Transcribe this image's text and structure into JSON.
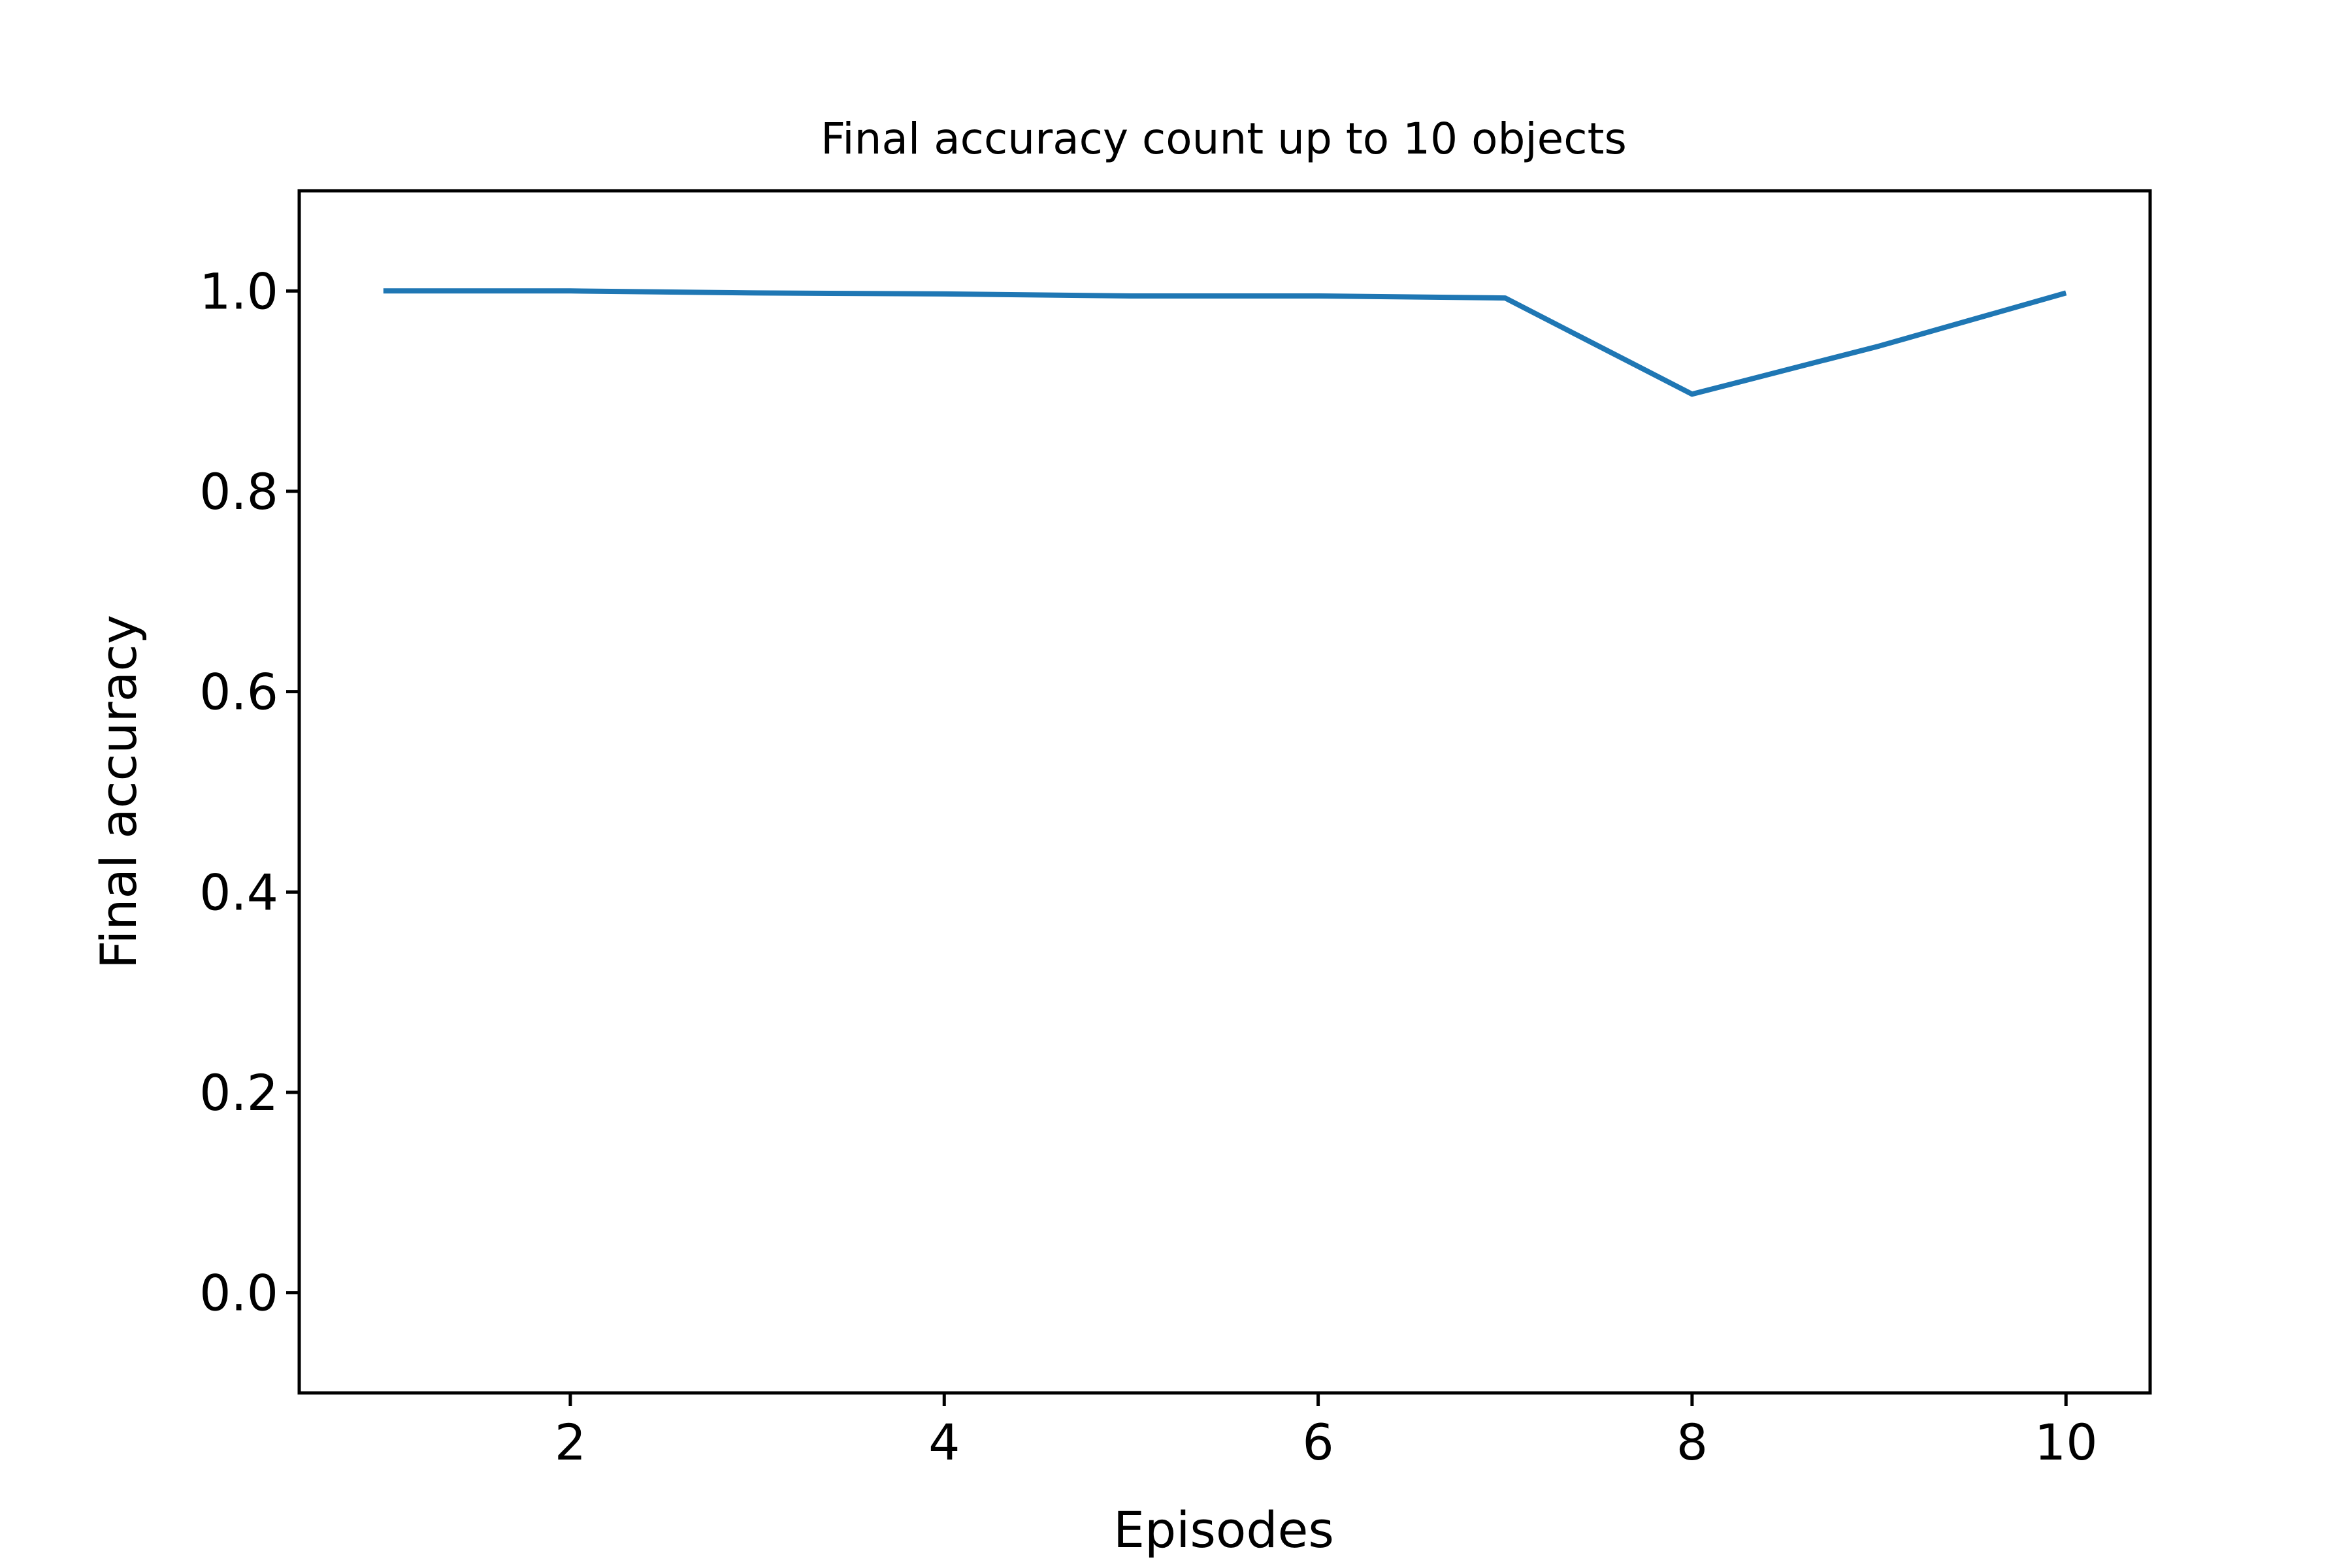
{
  "chart_data": {
    "type": "line",
    "title": "Final accuracy count up to 10 objects",
    "xlabel": "Episodes",
    "ylabel": "Final accuracy",
    "xlim": [
      0.55,
      10.45
    ],
    "ylim": [
      -0.1,
      1.1
    ],
    "xticks": [
      2,
      4,
      6,
      8,
      10
    ],
    "xtick_labels": [
      "2",
      "4",
      "6",
      "8",
      "10"
    ],
    "yticks": [
      0.0,
      0.2,
      0.4,
      0.6,
      0.8,
      1.0
    ],
    "ytick_labels": [
      "0.0",
      "0.2",
      "0.4",
      "0.6",
      "0.8",
      "1.0"
    ],
    "grid": false,
    "legend": "none",
    "series": [
      {
        "color": "#1f77b4",
        "x": [
          1,
          2,
          3,
          4,
          5,
          6,
          7,
          8,
          9,
          10
        ],
        "y": [
          1.0,
          1.0,
          0.998,
          0.997,
          0.995,
          0.995,
          0.993,
          0.897,
          0.945,
          0.998
        ]
      }
    ]
  }
}
